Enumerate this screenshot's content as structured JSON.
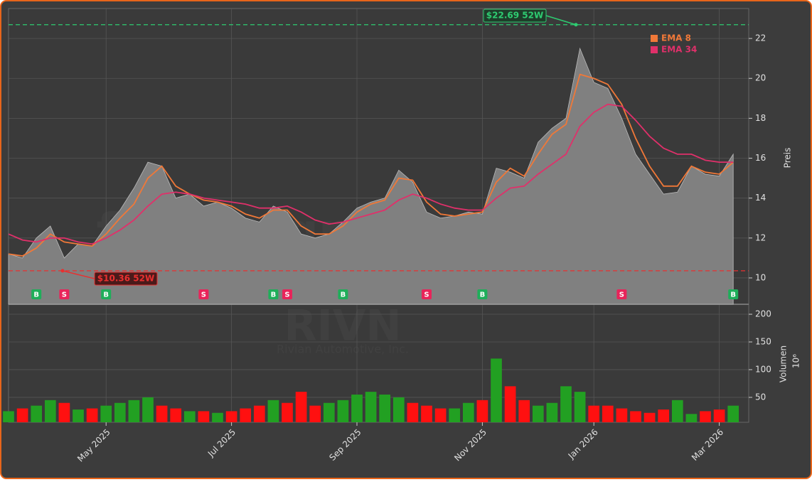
{
  "chart_data": [
    {
      "type": "area",
      "color": "#808080",
      "values": [
        11.2,
        11.0,
        12.0,
        12.6,
        11.0,
        11.7,
        11.6,
        12.6,
        13.4,
        14.5,
        15.8,
        15.6,
        14.0,
        14.2,
        13.6,
        13.8,
        13.5,
        13.0,
        12.8,
        13.6,
        13.3,
        12.2,
        12.0,
        12.2,
        12.8,
        13.5,
        13.8,
        14.0,
        15.4,
        14.8,
        13.3,
        13.0,
        13.1,
        13.3,
        13.2,
        15.5,
        15.3,
        15.0,
        16.8,
        17.5,
        18.0,
        21.5,
        19.8,
        19.5,
        18.0,
        16.2,
        15.2,
        14.2,
        14.3,
        15.6,
        15.2,
        15.1,
        16.2
      ],
      "series": [
        {
          "name": "EMA 8",
          "color": "#f07838",
          "values": [
            11.2,
            11.1,
            11.5,
            12.2,
            11.8,
            11.7,
            11.6,
            12.2,
            13.0,
            13.7,
            15.0,
            15.6,
            14.6,
            14.2,
            13.9,
            13.8,
            13.6,
            13.2,
            13.0,
            13.4,
            13.4,
            12.6,
            12.2,
            12.2,
            12.6,
            13.3,
            13.7,
            13.9,
            15.0,
            14.9,
            13.8,
            13.2,
            13.1,
            13.2,
            13.3,
            14.8,
            15.5,
            15.1,
            16.2,
            17.2,
            17.7,
            20.2,
            20.0,
            19.7,
            18.7,
            17.0,
            15.6,
            14.6,
            14.6,
            15.6,
            15.3,
            15.2,
            15.8
          ]
        },
        {
          "name": "EMA 34",
          "color": "#e0306a",
          "values": [
            12.2,
            11.9,
            11.8,
            12.0,
            12.0,
            11.8,
            11.7,
            12.0,
            12.4,
            12.9,
            13.6,
            14.2,
            14.3,
            14.2,
            14.0,
            13.9,
            13.8,
            13.7,
            13.5,
            13.5,
            13.6,
            13.3,
            12.9,
            12.7,
            12.8,
            13.0,
            13.2,
            13.4,
            13.9,
            14.2,
            14.0,
            13.7,
            13.5,
            13.4,
            13.4,
            14.0,
            14.5,
            14.6,
            15.2,
            15.7,
            16.2,
            17.6,
            18.3,
            18.7,
            18.6,
            17.9,
            17.1,
            16.5,
            16.2,
            16.2,
            15.9,
            15.8,
            15.8
          ]
        }
      ],
      "signals": [
        null,
        null,
        "B",
        null,
        "S",
        null,
        null,
        "B",
        null,
        null,
        null,
        null,
        null,
        null,
        "S",
        null,
        null,
        null,
        null,
        "B",
        "S",
        null,
        null,
        null,
        "B",
        null,
        null,
        null,
        null,
        null,
        "S",
        null,
        null,
        null,
        "B",
        null,
        null,
        null,
        null,
        null,
        null,
        null,
        null,
        null,
        "S",
        null,
        null,
        null,
        null,
        null,
        null,
        null,
        "B"
      ],
      "signal_colors": {
        "B": "#1fae5a",
        "S": "#e8245a"
      },
      "high_52w": {
        "value": 22.69,
        "label": "$22.69 52W",
        "color": "#2ecc71"
      },
      "low_52w": {
        "value": 10.36,
        "label": "$10.36 52W",
        "color": "#e83030"
      },
      "ylim": [
        8.68,
        23.5
      ],
      "yticks": [
        10,
        12,
        14,
        16,
        18,
        20,
        22
      ],
      "ylabel": "Preis",
      "grid": true,
      "legend": "upper right"
    },
    {
      "type": "bar",
      "up_color": "#22a022",
      "down_color": "#ff1010",
      "categories": [
        null,
        null,
        null,
        null,
        null,
        null,
        null,
        "May 2025",
        null,
        null,
        null,
        null,
        null,
        null,
        null,
        null,
        "Jul 2025",
        null,
        null,
        null,
        null,
        null,
        null,
        null,
        null,
        "Sep 2025",
        null,
        null,
        null,
        null,
        null,
        null,
        null,
        null,
        "Nov 2025",
        null,
        null,
        null,
        null,
        null,
        null,
        null,
        "Jan 2026",
        null,
        null,
        null,
        null,
        null,
        null,
        null,
        null,
        "Mar 2026",
        null
      ],
      "values": [
        25,
        30,
        35,
        45,
        40,
        28,
        30,
        35,
        40,
        45,
        50,
        35,
        30,
        25,
        25,
        22,
        25,
        30,
        35,
        45,
        40,
        60,
        35,
        40,
        45,
        55,
        60,
        55,
        50,
        40,
        35,
        30,
        30,
        40,
        45,
        120,
        70,
        45,
        35,
        40,
        70,
        60,
        35,
        35,
        30,
        25,
        22,
        28,
        45,
        20,
        25,
        28,
        35
      ],
      "ylim": [
        5,
        218
      ],
      "yticks": [
        50,
        100,
        150,
        200
      ],
      "ylabel": "Volumen",
      "ylabel_unit": "10⁶",
      "grid": true
    }
  ],
  "watermark": {
    "site": "forexsignale.trade",
    "ticker": "RIVN",
    "company": "Rivian Automotive, Inc."
  }
}
